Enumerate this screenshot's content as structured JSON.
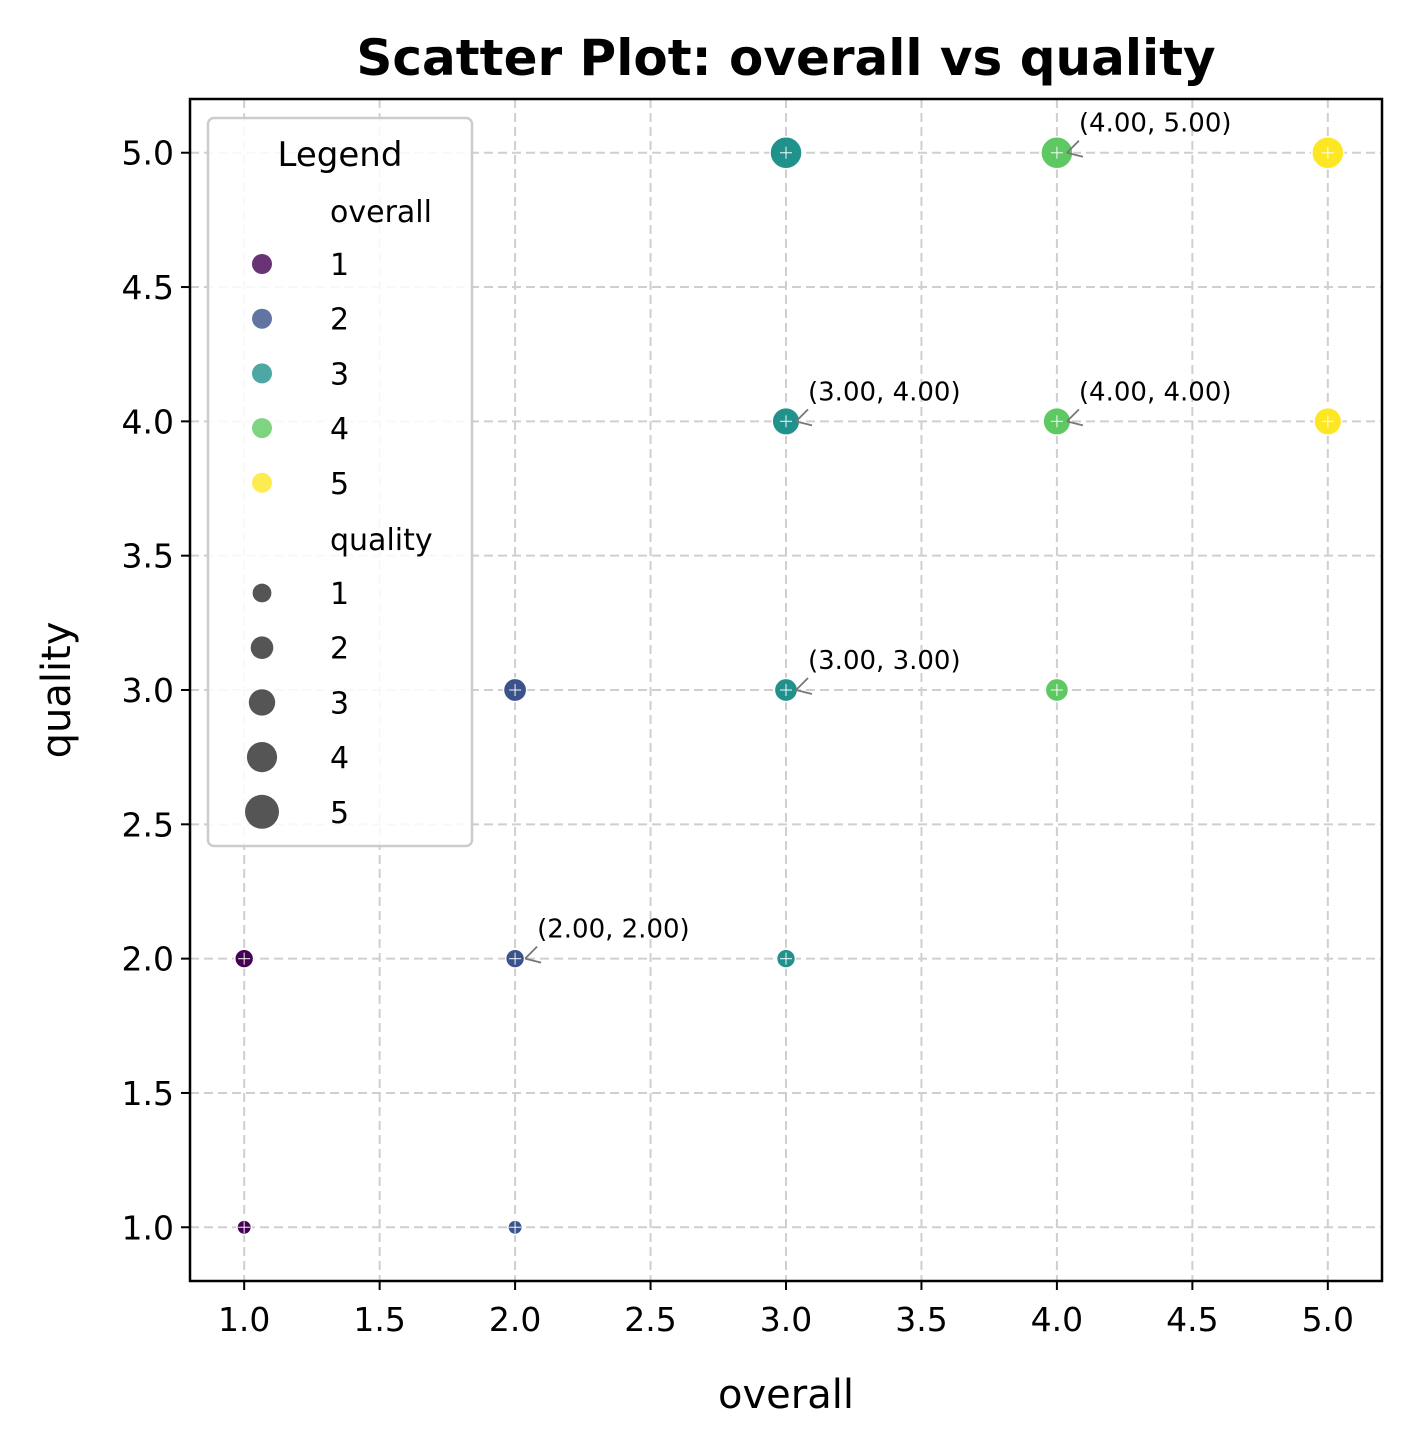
{
  "chart_data": {
    "type": "scatter",
    "title": "Scatter Plot: overall vs quality",
    "xlabel": "overall",
    "ylabel": "quality",
    "xlim": [
      0.8,
      5.2
    ],
    "ylim": [
      0.8,
      5.2
    ],
    "x_ticks": [
      "1.0",
      "1.5",
      "2.0",
      "2.5",
      "3.0",
      "3.5",
      "4.0",
      "4.5",
      "5.0"
    ],
    "y_ticks": [
      "1.0",
      "1.5",
      "2.0",
      "2.5",
      "3.0",
      "3.5",
      "4.0",
      "4.5",
      "5.0"
    ],
    "grid": true,
    "hue_field": "overall",
    "size_field": "quality",
    "palette": {
      "1": "#440154",
      "2": "#3b528b",
      "3": "#21918c",
      "4": "#5ec962",
      "5": "#fde725"
    },
    "points": [
      {
        "x": 1,
        "y": 1,
        "overall": 1,
        "quality": 1
      },
      {
        "x": 1,
        "y": 2,
        "overall": 1,
        "quality": 2
      },
      {
        "x": 2,
        "y": 1,
        "overall": 2,
        "quality": 1
      },
      {
        "x": 2,
        "y": 2,
        "overall": 2,
        "quality": 2
      },
      {
        "x": 2,
        "y": 3,
        "overall": 2,
        "quality": 3
      },
      {
        "x": 3,
        "y": 2,
        "overall": 3,
        "quality": 2
      },
      {
        "x": 3,
        "y": 3,
        "overall": 3,
        "quality": 3
      },
      {
        "x": 3,
        "y": 4,
        "overall": 3,
        "quality": 4
      },
      {
        "x": 3,
        "y": 5,
        "overall": 3,
        "quality": 5
      },
      {
        "x": 4,
        "y": 3,
        "overall": 4,
        "quality": 3
      },
      {
        "x": 4,
        "y": 4,
        "overall": 4,
        "quality": 4
      },
      {
        "x": 4,
        "y": 5,
        "overall": 4,
        "quality": 5
      },
      {
        "x": 5,
        "y": 4,
        "overall": 5,
        "quality": 4
      },
      {
        "x": 5,
        "y": 5,
        "overall": 5,
        "quality": 5
      }
    ],
    "annotations": [
      {
        "x": 2,
        "y": 2,
        "text": "(2.00, 2.00)"
      },
      {
        "x": 3,
        "y": 3,
        "text": "(3.00, 3.00)"
      },
      {
        "x": 3,
        "y": 4,
        "text": "(3.00, 4.00)"
      },
      {
        "x": 4,
        "y": 4,
        "text": "(4.00, 4.00)"
      },
      {
        "x": 4,
        "y": 5,
        "text": "(4.00, 5.00)"
      }
    ],
    "legend": {
      "title": "Legend",
      "placement": "top-left",
      "hue_title": "overall",
      "hue_entries": [
        "1",
        "2",
        "3",
        "4",
        "5"
      ],
      "size_title": "quality",
      "size_entries": [
        "1",
        "2",
        "3",
        "4",
        "5"
      ]
    }
  }
}
